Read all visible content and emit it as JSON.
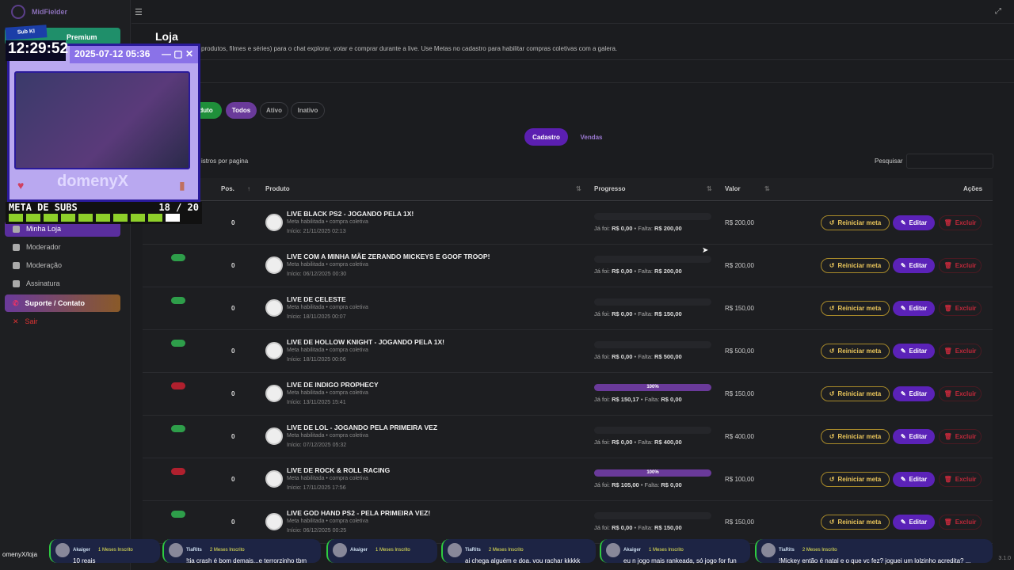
{
  "app": {
    "name": "MidFielder",
    "version": "3.1.0"
  },
  "sidebar": {
    "premium": "Premium",
    "items": [
      {
        "label": "Minha Loja",
        "active": true
      },
      {
        "label": "Moderador"
      },
      {
        "label": "Moderação"
      },
      {
        "label": "Assinatura"
      },
      {
        "label": "Suporte / Contato"
      },
      {
        "label": "Sair"
      }
    ]
  },
  "page": {
    "title": "Loja",
    "description": "produtos, filmes e séries) para o chat explorar, votar e comprar durante a live. Use Metas no cadastro para habilitar compras coletivas com a galera."
  },
  "filters": {
    "new_product": "duto",
    "all": "Todos",
    "active": "Ativo",
    "inactive": "Inativo"
  },
  "tabs": {
    "cadastro": "Cadastro",
    "vendas": "Vendas"
  },
  "per_page": "istros por pagina",
  "search": {
    "label": "Pesquisar",
    "value": ""
  },
  "table": {
    "headers": {
      "pos": "Pos.",
      "product": "Produto",
      "progress": "Progresso",
      "value": "Valor",
      "actions": "Ações"
    },
    "rows": [
      {
        "active": true,
        "pos": "0",
        "name": "LIVE BLACK PS2 - JOGANDO PELA 1X!",
        "sub": "Meta habilitada • compra coletiva",
        "start": "Início: 21/11/2025 02:13",
        "progress": 0,
        "paid": "R$ 0,00",
        "missing": "R$ 200,00",
        "value": "R$ 200,00"
      },
      {
        "active": true,
        "pos": "0",
        "name": "LIVE COM A MINHA MÃE ZERANDO MICKEYS E GOOF TROOP!",
        "sub": "Meta habilitada • compra coletiva",
        "start": "Início: 06/12/2025 00:30",
        "progress": 0,
        "paid": "R$ 0,00",
        "missing": "R$ 200,00",
        "value": "R$ 200,00"
      },
      {
        "active": true,
        "pos": "0",
        "name": "LIVE DE CELESTE",
        "sub": "Meta habilitada • compra coletiva",
        "start": "Início: 18/11/2025 00:07",
        "progress": 0,
        "paid": "R$ 0,00",
        "missing": "R$ 150,00",
        "value": "R$ 150,00"
      },
      {
        "active": true,
        "pos": "0",
        "name": "LIVE DE HOLLOW KNIGHT - JOGANDO PELA 1X!",
        "sub": "Meta habilitada • compra coletiva",
        "start": "Início: 18/11/2025 00:06",
        "progress": 0,
        "paid": "R$ 0,00",
        "missing": "R$ 500,00",
        "value": "R$ 500,00"
      },
      {
        "active": false,
        "pos": "0",
        "name": "LIVE DE INDIGO PROPHECY",
        "sub": "Meta habilitada • compra coletiva",
        "start": "Início: 13/11/2025 15:41",
        "progress": 100,
        "progress_label": "100%",
        "paid": "R$ 150,17",
        "missing": "R$ 0,00",
        "value": "R$ 150,00"
      },
      {
        "active": true,
        "pos": "0",
        "name": "LIVE DE LOL - JOGANDO PELA PRIMEIRA VEZ",
        "sub": "Meta habilitada • compra coletiva",
        "start": "Início: 07/12/2025 05:32",
        "progress": 0,
        "paid": "R$ 0,00",
        "missing": "R$ 400,00",
        "value": "R$ 400,00"
      },
      {
        "active": false,
        "pos": "0",
        "name": "LIVE DE ROCK & ROLL RACING",
        "sub": "Meta habilitada • compra coletiva",
        "start": "Início: 17/11/2025 17:56",
        "progress": 100,
        "progress_label": "100%",
        "paid": "R$ 105,00",
        "missing": "R$ 0,00",
        "value": "R$ 100,00"
      },
      {
        "active": true,
        "pos": "0",
        "name": "LIVE GOD HAND PS2 - PELA PRIMEIRA VEZ!",
        "sub": "Meta habilitada • compra coletiva",
        "start": "Início: 06/12/2025 00:25",
        "progress": 0,
        "paid": "R$ 0,00",
        "missing": "R$ 150,00",
        "value": "R$ 150,00"
      }
    ],
    "labels": {
      "paid": "Já foi:",
      "missing": "Falta:",
      "reset": "Reiniciar meta",
      "edit": "Editar",
      "delete": "Excluir"
    }
  },
  "colors": {
    "accent": "#5b22b8",
    "active": "#2e9e4a",
    "inactive": "#b0202e",
    "reset": "#e8c45a",
    "delete": "#c0283a"
  },
  "overlay": {
    "badge": "Sub KI",
    "clock": "12:29:52",
    "window_title": "2025-07-12 05:36",
    "streamer": "domenyX",
    "goal_label": "META DE SUBS",
    "goal_count": "18 / 20",
    "goal_fraction": 0.9
  },
  "chat": {
    "url": "omenyX/loja",
    "messages": [
      {
        "user": "Akaiger",
        "badge": "1 Meses Inscrito",
        "text": "10 reais"
      },
      {
        "user": "TiaRits",
        "badge": "2 Meses Inscrito",
        "text": "!tia crash é bom demais...e terrorzinho tbm"
      },
      {
        "user": "Akaiger",
        "badge": "1 Meses Inscrito",
        "text": ""
      },
      {
        "user": "TiaRits",
        "badge": "2 Meses Inscrito",
        "text": "ai chega alguém e doa. vou rachar kkkkk"
      },
      {
        "user": "Akaiger",
        "badge": "1 Meses Inscrito",
        "text": "eu n jogo mais rankeada, só jogo for fun"
      },
      {
        "user": "TiaRits",
        "badge": "2 Meses Inscrito",
        "text": "!Mickey então é natal e o que vc fez? joguei um lolzinho acredita? ..."
      }
    ]
  }
}
